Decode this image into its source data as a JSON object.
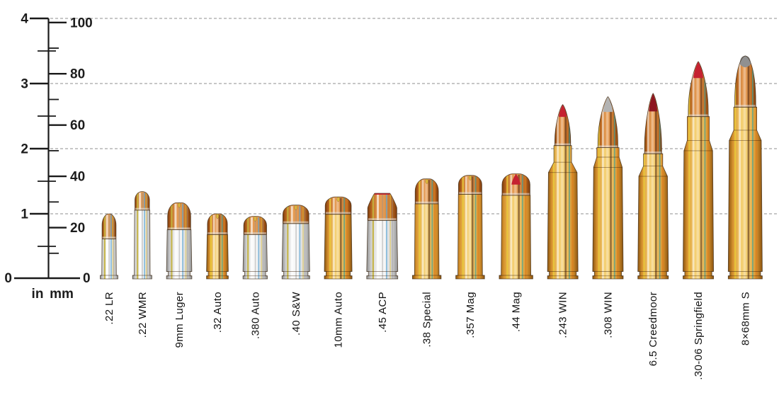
{
  "page": {
    "background": "#ffffff"
  },
  "ruler": {
    "in_unit_label": "in",
    "mm_unit_label": "mm",
    "zero_label": "0",
    "in_major_ticks": [
      1,
      2,
      3,
      4
    ],
    "in_minor_ticks": [
      0.5,
      1.5,
      2.5,
      3.5
    ],
    "mm_major_ticks": [
      20,
      40,
      60,
      80,
      100
    ],
    "mm_minor_ticks": [
      10,
      30,
      50,
      70,
      90
    ]
  },
  "chart_data": {
    "type": "pictorial-size-comparison",
    "title": "",
    "legend": "none",
    "y_axis": {
      "units": [
        "in",
        "mm"
      ],
      "in_range": [
        0,
        4
      ],
      "mm_range": [
        0,
        100
      ],
      "gridlines_at_in": [
        1,
        2,
        3,
        4
      ],
      "grid_style": "dashed"
    },
    "categories": [
      ".22 LR",
      ".22 WMR",
      "9mm Luger",
      ".32 Auto",
      ".380 Auto",
      ".40 S&W",
      "10mm Auto",
      ".45 ACP",
      ".38 Special",
      ".357 Mag",
      ".44 Mag",
      ".243 WIN",
      ".308 WIN",
      "6.5 Creedmoor",
      ".30-06 Springfield",
      "8×68mm S"
    ],
    "overall_length_mm": [
      25.4,
      34.1,
      29.7,
      25.4,
      24.4,
      28.8,
      32.0,
      33.4,
      39.0,
      40.4,
      41.0,
      68.0,
      71.1,
      72.4,
      84.8,
      87.0
    ],
    "overall_length_in": [
      1.0,
      1.34,
      1.17,
      1.0,
      0.96,
      1.13,
      1.26,
      1.31,
      1.54,
      1.59,
      1.61,
      2.68,
      2.8,
      2.85,
      3.34,
      3.43
    ],
    "cartridges": [
      {
        "label": ".22 LR",
        "oal_mm": 25.4,
        "case_mm": 15.6,
        "body_mm": 5.7,
        "rim_mm": 6.9,
        "bullet_mm": 5.7,
        "rim_type": "rimmed",
        "profile": "round-nose",
        "finish": "nickel",
        "tip": "copper"
      },
      {
        "label": ".22 WMR",
        "oal_mm": 34.1,
        "case_mm": 26.8,
        "body_mm": 6.2,
        "rim_mm": 7.5,
        "bullet_mm": 5.7,
        "rim_type": "rimmed",
        "profile": "round-nose",
        "finish": "nickel",
        "tip": "copper"
      },
      {
        "label": "9mm Luger",
        "oal_mm": 29.7,
        "case_mm": 19.2,
        "body_mm": 9.9,
        "rim_mm": 9.9,
        "bullet_mm": 9.0,
        "rim_type": "rimless",
        "profile": "hollow-point",
        "finish": "nickel",
        "tip": "copper"
      },
      {
        "label": ".32 Auto",
        "oal_mm": 25.4,
        "case_mm": 17.3,
        "body_mm": 8.5,
        "rim_mm": 8.5,
        "bullet_mm": 7.8,
        "rim_type": "rimless",
        "profile": "hollow-point",
        "finish": "brass",
        "tip": "copper"
      },
      {
        "label": ".380 Auto",
        "oal_mm": 24.4,
        "case_mm": 17.3,
        "body_mm": 9.5,
        "rim_mm": 9.5,
        "bullet_mm": 9.0,
        "rim_type": "rimless",
        "profile": "hollow-point",
        "finish": "nickel",
        "tip": "copper"
      },
      {
        "label": ".40 S&W",
        "oal_mm": 28.8,
        "case_mm": 21.6,
        "body_mm": 10.8,
        "rim_mm": 10.8,
        "bullet_mm": 10.2,
        "rim_type": "rimless",
        "profile": "hollow-point",
        "finish": "nickel",
        "tip": "copper"
      },
      {
        "label": "10mm Auto",
        "oal_mm": 32.0,
        "case_mm": 25.2,
        "body_mm": 10.8,
        "rim_mm": 10.8,
        "bullet_mm": 10.2,
        "rim_type": "rimless",
        "profile": "hollow-point",
        "finish": "brass",
        "tip": "copper"
      },
      {
        "label": ".45 ACP",
        "oal_mm": 33.4,
        "case_mm": 22.8,
        "body_mm": 12.1,
        "rim_mm": 12.1,
        "bullet_mm": 11.5,
        "rim_type": "rimless",
        "profile": "flat-nose",
        "finish": "nickel",
        "tip": "red-line"
      },
      {
        "label": ".38 Special",
        "oal_mm": 39.0,
        "case_mm": 29.3,
        "body_mm": 9.6,
        "rim_mm": 11.2,
        "bullet_mm": 9.1,
        "rim_type": "rimmed",
        "profile": "hollow-point",
        "finish": "brass",
        "tip": "copper"
      },
      {
        "label": ".357 Mag",
        "oal_mm": 40.4,
        "case_mm": 33.0,
        "body_mm": 9.6,
        "rim_mm": 11.2,
        "bullet_mm": 9.1,
        "rim_type": "rimmed",
        "profile": "hollow-point",
        "finish": "brass",
        "tip": "copper"
      },
      {
        "label": ".44 Mag",
        "oal_mm": 41.0,
        "case_mm": 32.6,
        "body_mm": 11.6,
        "rim_mm": 13.1,
        "bullet_mm": 10.9,
        "rim_type": "rimmed",
        "profile": "hollow-point",
        "finish": "brass",
        "tip": "red"
      },
      {
        "label": ".243 WIN",
        "oal_mm": 68.0,
        "case_mm": 52.0,
        "shoulder_mm": 41.5,
        "neck_mm": 6.9,
        "body_mm": 11.9,
        "rim_mm": 11.9,
        "bullet_mm": 6.2,
        "rim_type": "rimless",
        "profile": "spitzer",
        "finish": "brass",
        "tip": "red"
      },
      {
        "label": ".308 WIN",
        "oal_mm": 71.1,
        "case_mm": 51.2,
        "shoulder_mm": 43.5,
        "neck_mm": 8.7,
        "body_mm": 11.9,
        "rim_mm": 11.9,
        "bullet_mm": 7.8,
        "rim_type": "rimless",
        "profile": "spitzer",
        "finish": "brass",
        "tip": "silver"
      },
      {
        "label": "6.5 Creedmoor",
        "oal_mm": 72.4,
        "case_mm": 48.8,
        "shoulder_mm": 40.0,
        "neck_mm": 7.5,
        "body_mm": 11.9,
        "rim_mm": 11.9,
        "bullet_mm": 6.7,
        "rim_type": "rimless",
        "profile": "spitzer",
        "finish": "brass",
        "tip": "dark-red"
      },
      {
        "label": ".30-06 Springfield",
        "oal_mm": 84.8,
        "case_mm": 63.3,
        "shoulder_mm": 50.0,
        "neck_mm": 8.6,
        "body_mm": 11.9,
        "rim_mm": 11.9,
        "bullet_mm": 7.8,
        "rim_type": "rimless",
        "profile": "spitzer",
        "finish": "brass",
        "tip": "red"
      },
      {
        "label": "8×68mm S",
        "oal_mm": 87.0,
        "case_mm": 67.0,
        "shoulder_mm": 54.0,
        "neck_mm": 9.0,
        "body_mm": 13.3,
        "rim_mm": 13.3,
        "bullet_mm": 8.2,
        "rim_type": "rimless",
        "profile": "round-nose-rifle",
        "finish": "brass",
        "tip": "gray-dome"
      }
    ]
  },
  "colors": {
    "background": "#ffffff",
    "axis": "#1a1a1a",
    "gridline": "#8f8f8f",
    "label_text": "#121212",
    "brass": {
      "dark": "#8a5310",
      "mid": "#d8942f",
      "light": "#f4cf72"
    },
    "nickel": {
      "dark": "#8f8f8f",
      "mid": "#cfcfcf",
      "light": "#f8f8f8"
    },
    "copper": {
      "dark": "#7c3a0c",
      "mid": "#bc6a22",
      "light": "#e49a52"
    },
    "tip_red": "#c52231",
    "tip_dark_red": "#8e1520",
    "tip_silver": "#b3b3b3",
    "tip_gray": "#909090",
    "hollow_point": "#ddb93f",
    "mouth_band": "#e8e8e8",
    "outline": "#3c2a16",
    "stripes": {
      "yellow": "#e9c83b",
      "teal": "#2fa3a3",
      "dark": "#4a2510",
      "white": "#ffffff",
      "orange": "#d97c1e",
      "blue": "#5fa8d6",
      "olive": "#c4b23e",
      "gray": "#8f8f8f"
    }
  }
}
